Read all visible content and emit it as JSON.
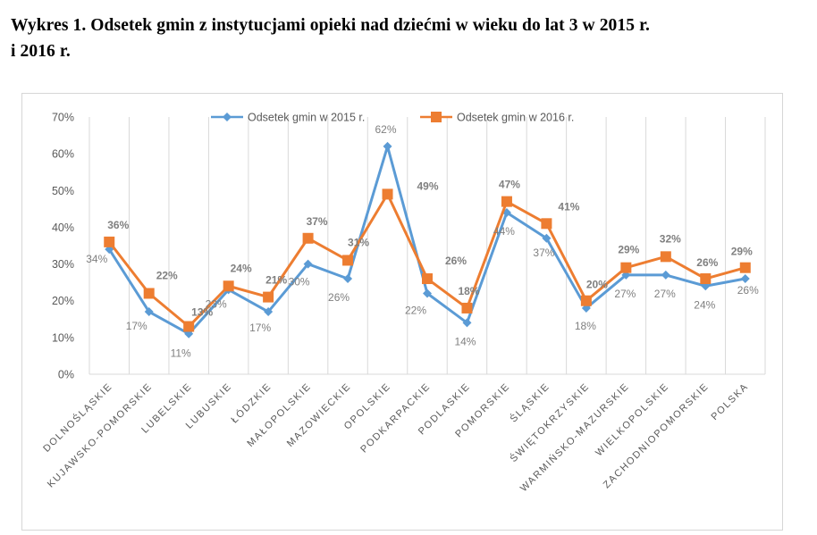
{
  "header": {
    "title_line1": "Wykres 1. Odsetek gmin z instytucjami opieki nad dziećmi w wieku do lat 3 w 2015 r.",
    "title_line2": "i 2016 r."
  },
  "chart_data": {
    "type": "line",
    "title": "Wykres 1. Odsetek gmin z instytucjami opieki nad dziećmi w wieku do lat 3 w 2015 r. i 2016 r.",
    "xlabel": "",
    "ylabel": "",
    "ylim": [
      0,
      70
    ],
    "yticks": [
      "0%",
      "10%",
      "20%",
      "30%",
      "40%",
      "50%",
      "60%",
      "70%"
    ],
    "ytick_values": [
      0,
      10,
      20,
      30,
      40,
      50,
      60,
      70
    ],
    "grid": "vertical",
    "legend_position": "top",
    "categories": [
      "DOLNOŚLĄSKIE",
      "KUJAWSKO-POMORSKIE",
      "LUBELSKIE",
      "LUBUSKIE",
      "ŁÓDZKIE",
      "MAŁOPOLSKIE",
      "MAZOWIECKIE",
      "OPOLSKIE",
      "PODKARPACKIE",
      "PODLASKIE",
      "POMORSKIE",
      "ŚLĄSKIE",
      "ŚWIĘTOKRZYSKIE",
      "WARMIŃSKO-MAZURSKIE",
      "WIELKOPOLSKIE",
      "ZACHODNIOPOMORSKIE",
      "POLSKA"
    ],
    "series": [
      {
        "name": "Odsetek gmin w 2015 r.",
        "color": "#5b9bd5",
        "marker": "diamond",
        "values": [
          34,
          17,
          11,
          23,
          17,
          30,
          26,
          62,
          22,
          14,
          44,
          37,
          18,
          27,
          27,
          24,
          26
        ],
        "labels": [
          "34%",
          "17%",
          "11%",
          "23%",
          "17%",
          "30%",
          "26%",
          "62%",
          "22%",
          "14%",
          "44%",
          "37%",
          "18%",
          "27%",
          "27%",
          "24%",
          "26%"
        ]
      },
      {
        "name": "Odsetek gmin w 2016 r.",
        "color": "#ed7d31",
        "marker": "square",
        "values": [
          36,
          22,
          13,
          24,
          21,
          37,
          31,
          49,
          26,
          18,
          47,
          41,
          20,
          29,
          32,
          26,
          29
        ],
        "labels": [
          "36%",
          "22%",
          "13%",
          "24%",
          "21%",
          "37%",
          "31%",
          "49%",
          "26%",
          "18%",
          "47%",
          "41%",
          "20%",
          "29%",
          "32%",
          "26%",
          "29%"
        ]
      }
    ]
  }
}
